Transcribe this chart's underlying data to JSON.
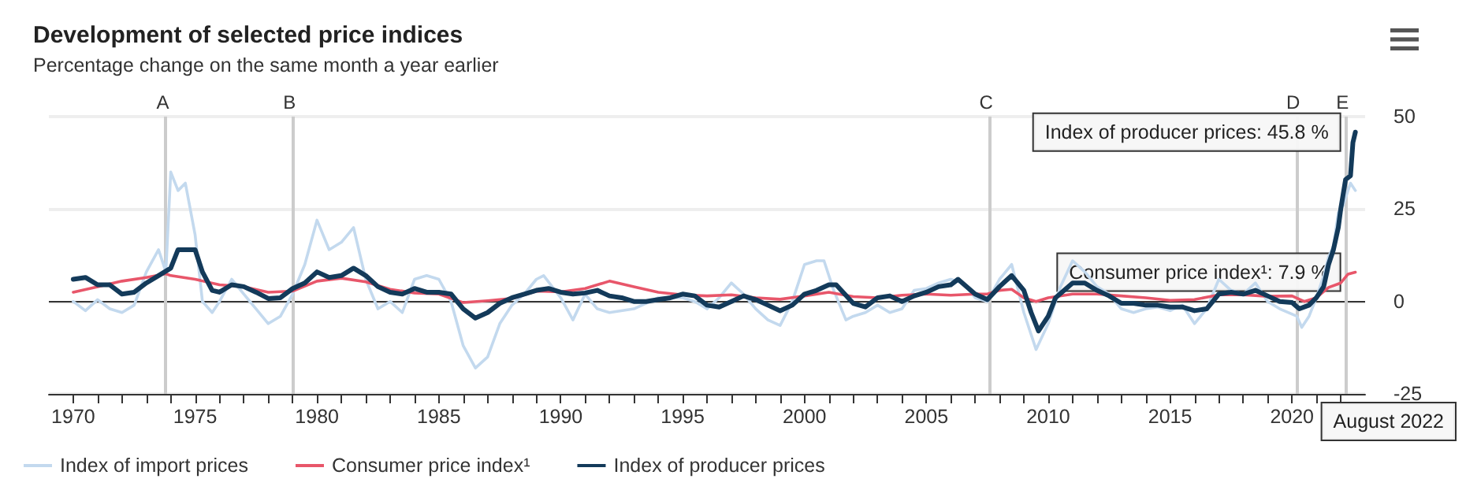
{
  "chart_data": {
    "type": "line",
    "title": "Development of selected price indices",
    "subtitle": "Percentage change on the same month a year earlier",
    "xlim": [
      1969,
      2023
    ],
    "ylim": [
      -25,
      50
    ],
    "yticks": [
      -25,
      0,
      25,
      50
    ],
    "xticks": [
      1970,
      {
        "value": 1971,
        "label": null
      },
      {
        "value": 1972,
        "label": null
      },
      {
        "value": 1973,
        "label": null
      },
      {
        "value": 1974,
        "label": null
      },
      1975,
      {
        "value": 1976,
        "label": null
      },
      {
        "value": 1977,
        "label": null
      },
      {
        "value": 1978,
        "label": null
      },
      {
        "value": 1979,
        "label": null
      },
      1980,
      {
        "value": 1981,
        "label": null
      },
      {
        "value": 1982,
        "label": null
      },
      {
        "value": 1983,
        "label": null
      },
      {
        "value": 1984,
        "label": null
      },
      1985,
      {
        "value": 1986,
        "label": null
      },
      {
        "value": 1987,
        "label": null
      },
      {
        "value": 1988,
        "label": null
      },
      {
        "value": 1989,
        "label": null
      },
      1990,
      {
        "value": 1991,
        "label": null
      },
      {
        "value": 1992,
        "label": null
      },
      {
        "value": 1993,
        "label": null
      },
      {
        "value": 1994,
        "label": null
      },
      1995,
      {
        "value": 1996,
        "label": null
      },
      {
        "value": 1997,
        "label": null
      },
      {
        "value": 1998,
        "label": null
      },
      {
        "value": 1999,
        "label": null
      },
      2000,
      {
        "value": 2001,
        "label": null
      },
      {
        "value": 2002,
        "label": null
      },
      {
        "value": 2003,
        "label": null
      },
      {
        "value": 2004,
        "label": null
      },
      2005,
      {
        "value": 2006,
        "label": null
      },
      {
        "value": 2007,
        "label": null
      },
      {
        "value": 2008,
        "label": null
      },
      {
        "value": 2009,
        "label": null
      },
      2010,
      {
        "value": 2011,
        "label": null
      },
      {
        "value": 2012,
        "label": null
      },
      {
        "value": 2013,
        "label": null
      },
      {
        "value": 2014,
        "label": null
      },
      2015,
      {
        "value": 2016,
        "label": null
      },
      {
        "value": 2017,
        "label": null
      },
      {
        "value": 2018,
        "label": null
      },
      {
        "value": 2019,
        "label": null
      },
      2020,
      {
        "value": 2021,
        "label": null
      },
      {
        "value": 2022,
        "label": null
      }
    ],
    "grid": "y",
    "legend": "bottom",
    "marker": "none",
    "line_style": "solid",
    "series": [
      {
        "name": "Index of import prices",
        "color": "#c3d9ee",
        "x": [
          1970,
          1970.5,
          1971,
          1971.5,
          1972,
          1972.5,
          1973,
          1973.5,
          1973.8,
          1974,
          1974.3,
          1974.6,
          1975,
          1975.3,
          1975.7,
          1976,
          1976.5,
          1977,
          1977.5,
          1978,
          1978.5,
          1979,
          1979.5,
          1980,
          1980.5,
          1981,
          1981.5,
          1982,
          1982.5,
          1983,
          1983.5,
          1984,
          1984.5,
          1985,
          1985.5,
          1986,
          1986.5,
          1987,
          1987.5,
          1988,
          1988.5,
          1989,
          1989.3,
          1990,
          1990.5,
          1991,
          1991.5,
          1992,
          1993,
          1994,
          1995,
          1995.5,
          1996,
          1996.5,
          1997,
          1997.5,
          1998,
          1998.5,
          1999,
          1999.5,
          2000,
          2000.5,
          2000.8,
          2001.2,
          2001.7,
          2002,
          2002.5,
          2003,
          2003.5,
          2004,
          2004.5,
          2005,
          2005.5,
          2006,
          2006.5,
          2007,
          2007.5,
          2008,
          2008.5,
          2009,
          2009.5,
          2010,
          2010.5,
          2011,
          2011.5,
          2012,
          2012.5,
          2013,
          2013.5,
          2014,
          2014.5,
          2015,
          2015.5,
          2016,
          2016.5,
          2017,
          2017.5,
          2018,
          2018.5,
          2019,
          2019.5,
          2020.2,
          2020.4,
          2020.7,
          2021,
          2021.3,
          2021.5,
          2021.7,
          2021.9,
          2022.1,
          2022.4,
          2022.6
        ],
        "values": [
          0,
          -2.5,
          0.5,
          -2,
          -3,
          -1,
          8,
          14,
          8,
          35,
          30,
          32,
          18,
          0,
          -3,
          0,
          6,
          2,
          -2,
          -6,
          -4,
          2,
          10,
          22,
          14,
          16,
          20,
          6,
          -2,
          0,
          -3,
          6,
          7,
          6,
          0,
          -12,
          -18,
          -15,
          -6,
          -1,
          2,
          6,
          7,
          1,
          -5,
          2,
          -2,
          -3,
          -2,
          1,
          1,
          0,
          -2,
          1,
          5,
          2,
          -2,
          -5,
          -6.5,
          0,
          10,
          11,
          11,
          3,
          -5,
          -4,
          -3,
          -1,
          -3,
          -2,
          3,
          3.5,
          5,
          6,
          5,
          1,
          0,
          6,
          10,
          -3,
          -13,
          -6,
          4,
          11,
          8,
          4,
          2,
          -2,
          -3,
          -2,
          -1.5,
          -2.5,
          -1,
          -6,
          -2,
          6,
          3,
          2,
          5,
          0,
          -2,
          -4,
          -7,
          -4,
          1,
          7,
          12,
          15,
          24,
          26,
          32,
          30
        ]
      },
      {
        "name": "Consumer price index¹",
        "color": "#e8566a",
        "x": [
          1970,
          1971,
          1972,
          1973,
          1973.8,
          1974,
          1975,
          1976,
          1977,
          1978,
          1979,
          1980,
          1981,
          1982,
          1983,
          1984,
          1985,
          1986,
          1987,
          1988,
          1989,
          1990,
          1991,
          1992,
          1993,
          1994,
          1995,
          1996,
          1997,
          1998,
          1999,
          2000,
          2001,
          2002,
          2003,
          2004,
          2005,
          2006,
          2007,
          2007.5,
          2008,
          2008.5,
          2009,
          2009.5,
          2010,
          2011,
          2012,
          2013,
          2014,
          2015,
          2016,
          2017,
          2018,
          2019,
          2020,
          2020.5,
          2021,
          2021.5,
          2022,
          2022.3,
          2022.6
        ],
        "values": [
          2.5,
          4,
          5.5,
          6.5,
          7.5,
          7,
          6,
          4.5,
          4,
          2.5,
          2.8,
          5.5,
          6.3,
          5.3,
          3.3,
          2.3,
          2,
          -0.3,
          0.2,
          0.8,
          2.8,
          2.6,
          3.5,
          5.5,
          4,
          2.5,
          1.8,
          1.5,
          1.8,
          1,
          0.6,
          1.5,
          2.5,
          1.3,
          1,
          1.7,
          2,
          1.7,
          2,
          2,
          3,
          3.3,
          1,
          0,
          1,
          2,
          2,
          1.5,
          1,
          0.3,
          0.5,
          1.8,
          1.8,
          1.4,
          1.5,
          0,
          1,
          3.8,
          5,
          7.4,
          7.9
        ]
      },
      {
        "name": "Index of producer prices",
        "color": "#133a5a",
        "x": [
          1970,
          1970.5,
          1971,
          1971.5,
          1972,
          1972.5,
          1973,
          1973.5,
          1974,
          1974.3,
          1975,
          1975.3,
          1975.7,
          1976,
          1976.5,
          1977,
          1977.5,
          1978,
          1978.5,
          1979,
          1979.5,
          1980,
          1980.5,
          1981,
          1981.5,
          1982,
          1982.5,
          1983,
          1983.5,
          1984,
          1984.5,
          1985,
          1985.5,
          1986,
          1986.5,
          1987,
          1987.5,
          1988,
          1988.5,
          1989,
          1989.5,
          1990,
          1990.5,
          1991,
          1991.5,
          1992,
          1992.5,
          1993,
          1993.5,
          1994,
          1994.5,
          1995,
          1995.5,
          1996,
          1996.5,
          1997,
          1997.5,
          1998,
          1998.5,
          1999,
          1999.5,
          2000,
          2000.5,
          2001,
          2001.3,
          2002,
          2002.5,
          2003,
          2003.5,
          2004,
          2004.5,
          2005,
          2005.5,
          2006,
          2006.3,
          2007,
          2007.5,
          2008,
          2008.5,
          2009,
          2009.3,
          2009.6,
          2010,
          2010.3,
          2011,
          2011.5,
          2012,
          2012.5,
          2013,
          2013.5,
          2014,
          2014.5,
          2015,
          2015.5,
          2016,
          2016.5,
          2017,
          2017.5,
          2018,
          2018.5,
          2019,
          2019.5,
          2020,
          2020.3,
          2020.7,
          2021,
          2021.3,
          2021.5,
          2021.7,
          2021.9,
          2022,
          2022.2,
          2022.4,
          2022.5,
          2022.6
        ],
        "values": [
          6,
          6.5,
          4.5,
          4.5,
          2,
          2.5,
          5,
          7,
          9,
          14,
          14,
          8,
          3,
          2.5,
          4.5,
          4,
          2.5,
          0.8,
          1,
          3.5,
          5,
          8,
          6.5,
          7,
          9,
          7,
          4,
          2.5,
          2,
          3.5,
          2.5,
          2.5,
          2,
          -2,
          -4.5,
          -3,
          -0.5,
          1,
          2,
          3,
          3.5,
          2.5,
          2,
          2.3,
          3,
          1.5,
          1,
          0,
          0,
          0.5,
          1,
          2,
          1.5,
          -1,
          -1.5,
          0,
          1.5,
          0.5,
          -1,
          -2.5,
          -1,
          2,
          3,
          4.5,
          4.5,
          -0.5,
          -1.5,
          1,
          1.5,
          0,
          1.5,
          2.5,
          4,
          4.5,
          6,
          2,
          0.5,
          4,
          7,
          3,
          -3,
          -8,
          -4,
          1,
          5,
          5,
          3,
          1.5,
          -0.5,
          -0.5,
          -1,
          -1,
          -1.5,
          -1.5,
          -2.5,
          -2,
          2,
          2.5,
          2,
          3,
          1.5,
          0,
          -0.3,
          -2,
          -1,
          1,
          4,
          10,
          14,
          20,
          25,
          33,
          34,
          43,
          45.8
        ]
      }
    ],
    "ref_lines": [
      {
        "axis": "y",
        "value": 0,
        "label": null,
        "color": "#333333"
      },
      {
        "axis": "x",
        "value": 1973.8,
        "label": "A",
        "color": "#cccccc"
      },
      {
        "axis": "x",
        "value": 1979,
        "label": "B",
        "color": "#cccccc"
      },
      {
        "axis": "x",
        "value": 2007.6,
        "label": "C",
        "color": "#cccccc"
      },
      {
        "axis": "x",
        "value": 2020.2,
        "label": "D",
        "color": "#cccccc"
      },
      {
        "axis": "x",
        "value": 2022.2,
        "label": "E",
        "color": "#cccccc"
      }
    ],
    "annotations": [
      {
        "text": "Index of producer prices: 45.8 %",
        "x": 2022.6,
        "y": 45.8
      },
      {
        "text": "Consumer price index¹: 7.9 %",
        "x": 2022.6,
        "y": 7.9
      },
      "August 2022"
    ]
  }
}
